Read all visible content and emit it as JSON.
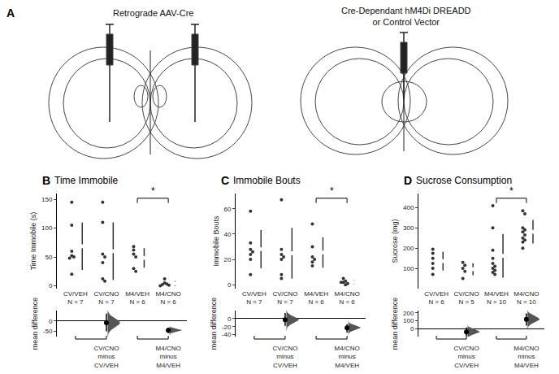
{
  "chart_data": [
    {
      "type": "diagram",
      "panel": "A",
      "labels": [
        "Retrograde AAV-Cre",
        "Cre-Dependant hM4Di DREADD\nor Control Vector"
      ]
    },
    {
      "type": "scatter",
      "panel": "B",
      "title": "Time Immobile",
      "ylabel": "Time Immobile (s)",
      "categories": [
        "CV/VEH\nN = 7",
        "CV/CNO\nN = 7",
        "M4/VEH\nN = 6",
        "M4/CNO\nN = 6"
      ],
      "values": [
        [
          145,
          105,
          60,
          52,
          50,
          48,
          20
        ],
        [
          145,
          110,
          55,
          50,
          40,
          12,
          8
        ],
        [
          68,
          62,
          55,
          50,
          30,
          25
        ],
        [
          12,
          5,
          3,
          2,
          1,
          0
        ]
      ],
      "means": [
        68.6,
        60,
        48.3,
        3.8
      ],
      "sd": [
        41,
        50,
        17,
        4.4
      ],
      "color": "#333333",
      "ylim": [
        -5,
        160
      ],
      "yticks": [
        0,
        50,
        100,
        150
      ],
      "grid": false,
      "significance": [
        {
          "between": [
            2,
            3
          ],
          "label": "*"
        }
      ],
      "difference": {
        "ylabel": "mean difference",
        "categories": [
          "CV/CNO\nminus\nCV/VEH",
          "M4/CNO\nminus\nM4/VEH"
        ],
        "pairs": [
          [
            0,
            1
          ],
          [
            2,
            3
          ]
        ],
        "values": [
          -9,
          -45
        ],
        "ci": [
          [
            -50,
            35
          ],
          [
            -58,
            -32
          ]
        ],
        "ylim": [
          -75,
          50
        ],
        "yticks": [
          -50,
          0
        ]
      }
    },
    {
      "type": "scatter",
      "panel": "C",
      "title": "Immobile Bouts",
      "ylabel": "Immobile Bouts",
      "categories": [
        "CV/VEH\nN = 7",
        "CV/CNO\nN = 7",
        "M4/VEH\nN = 6",
        "M4/CNO\nN = 6"
      ],
      "values": [
        [
          58,
          33,
          28,
          26,
          24,
          20,
          8
        ],
        [
          67,
          28,
          24,
          22,
          20,
          8,
          5
        ],
        [
          48,
          30,
          22,
          20,
          18,
          15
        ],
        [
          5,
          3,
          2,
          2,
          1,
          0
        ]
      ],
      "means": [
        28.1,
        24.9,
        25.5,
        2.2
      ],
      "sd": [
        15,
        20,
        12,
        1.8
      ],
      "color": "#333333",
      "ylim": [
        -3,
        72
      ],
      "yticks": [
        0,
        20,
        40,
        60
      ],
      "grid": false,
      "significance": [
        {
          "between": [
            2,
            3
          ],
          "label": "*"
        }
      ],
      "difference": {
        "ylabel": "mean difference",
        "categories": [
          "CV/CNO\nminus\nCV/VEH",
          "M4/CNO\nminus\nM4/VEH"
        ],
        "pairs": [
          [
            0,
            1
          ],
          [
            2,
            3
          ]
        ],
        "values": [
          -3,
          -23
        ],
        "ci": [
          [
            -18,
            14
          ],
          [
            -35,
            -14
          ]
        ],
        "ylim": [
          -45,
          20
        ],
        "yticks": [
          -40,
          -20,
          0
        ]
      }
    },
    {
      "type": "scatter",
      "panel": "D",
      "title": "Sucrose Consumption",
      "ylabel": "Sucrose (mg)",
      "categories": [
        "CV/VEH\nN = 6",
        "CV/CNO\nN = 5",
        "M4/VEH\nN = 10",
        "M4/CNO\nN = 10"
      ],
      "values": [
        [
          195,
          175,
          150,
          125,
          100,
          70
        ],
        [
          130,
          115,
          100,
          85,
          50
        ],
        [
          410,
          300,
          190,
          150,
          125,
          110,
          100,
          90,
          80,
          70
        ],
        [
          385,
          370,
          300,
          290,
          280,
          265,
          250,
          240,
          230,
          200
        ]
      ],
      "means": [
        136,
        96,
        162.5,
        281
      ],
      "sd": [
        46,
        30,
        108,
        58
      ],
      "color": "#333333",
      "ylim": [
        0,
        470
      ],
      "yticks": [
        100,
        200,
        300,
        400
      ],
      "grid": false,
      "significance": [
        {
          "between": [
            2,
            3
          ],
          "label": "*"
        }
      ],
      "difference": {
        "ylabel": "mean difference",
        "categories": [
          "CV/CNO\nminus\nCV/VEH",
          "M4/CNO\nminus\nM4/VEH"
        ],
        "pairs": [
          [
            0,
            1
          ],
          [
            2,
            3
          ]
        ],
        "values": [
          -40,
          119
        ],
        "ci": [
          [
            -95,
            15
          ],
          [
            40,
            195
          ]
        ],
        "ylim": [
          -100,
          230
        ],
        "yticks": [
          0,
          100,
          200
        ]
      }
    }
  ]
}
